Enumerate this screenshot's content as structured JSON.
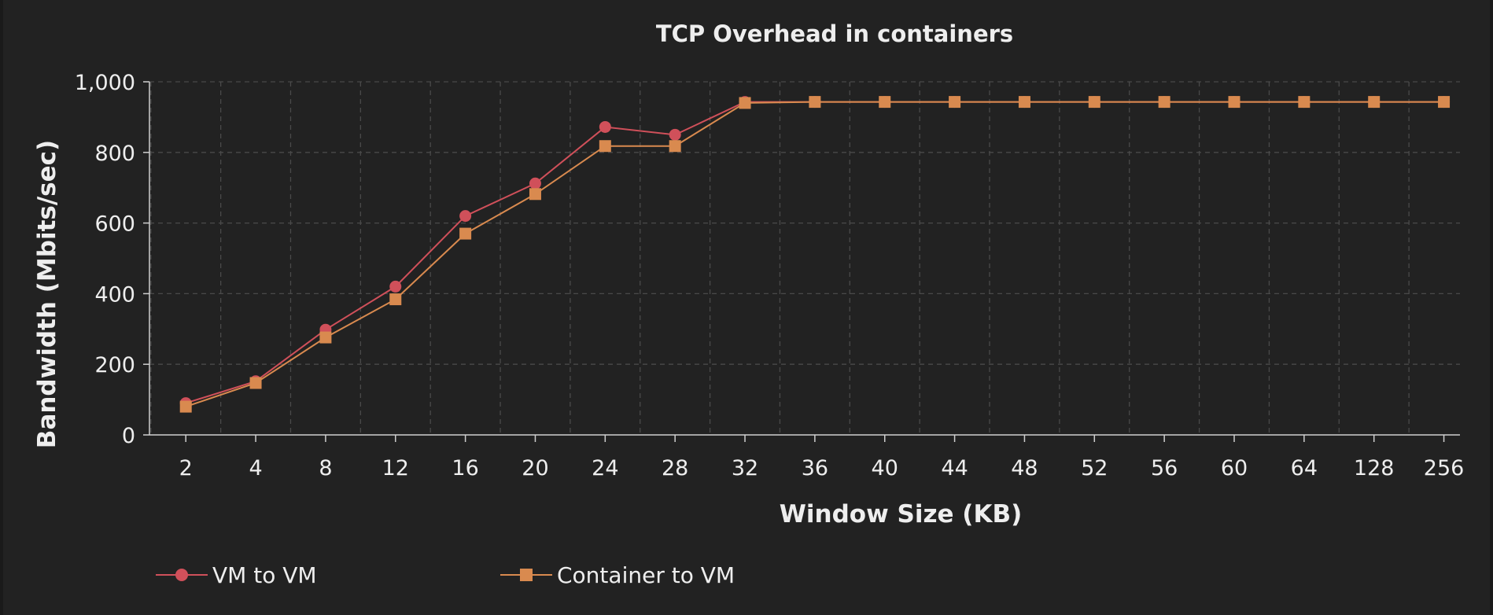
{
  "chart_data": {
    "type": "line",
    "title": "TCP Overhead in containers",
    "xlabel": "Window Size (KB)",
    "ylabel": "Bandwidth (Mbits/sec)",
    "categories": [
      "2",
      "4",
      "8",
      "12",
      "16",
      "20",
      "24",
      "28",
      "32",
      "36",
      "40",
      "44",
      "48",
      "52",
      "56",
      "60",
      "64",
      "128",
      "256"
    ],
    "ylim": [
      0,
      1000
    ],
    "yticks": [
      0,
      200,
      400,
      600,
      800,
      1000
    ],
    "ytick_labels": [
      "0",
      "200",
      "400",
      "600",
      "800",
      "1,000"
    ],
    "grid": true,
    "legend_position": "bottom-left",
    "series": [
      {
        "name": "VM to VM",
        "color": "#d0505a",
        "marker": "circle",
        "values": [
          90,
          152,
          298,
          420,
          620,
          712,
          872,
          850,
          943,
          943,
          943,
          943,
          943,
          943,
          943,
          943,
          943,
          943,
          943
        ]
      },
      {
        "name": "Container to VM",
        "color": "#d98a4f",
        "marker": "square",
        "values": [
          80,
          147,
          276,
          384,
          570,
          682,
          818,
          818,
          940,
          943,
          943,
          943,
          943,
          943,
          943,
          943,
          943,
          943,
          943
        ]
      }
    ]
  }
}
